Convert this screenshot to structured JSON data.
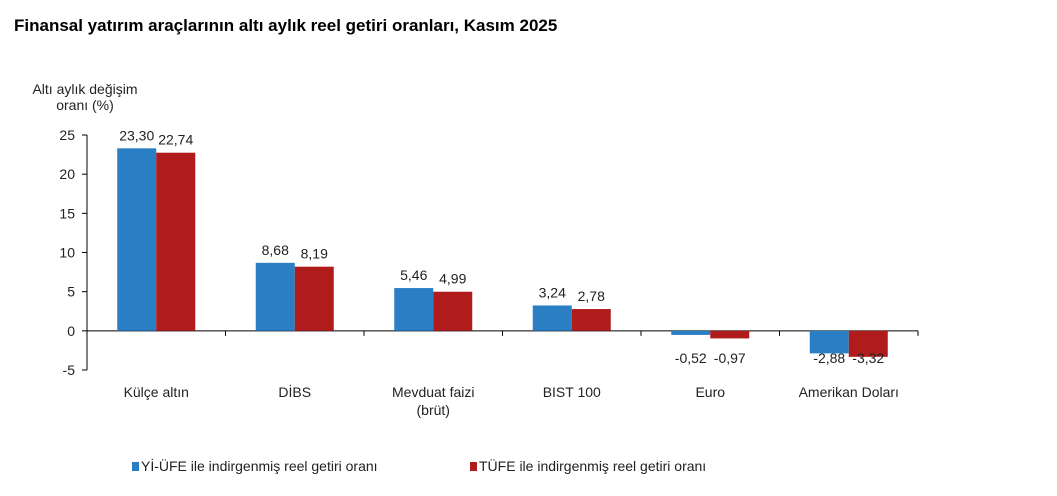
{
  "chart_data": {
    "type": "bar",
    "title": "Finansal yatırım araçlarının altı aylık reel getiri oranları, Kasım 2025",
    "ylabel": [
      "Altı aylık değişim",
      "oranı (%)"
    ],
    "xlabel": "",
    "ylim": [
      -5,
      25
    ],
    "yticks": [
      -5,
      0,
      5,
      10,
      15,
      20,
      25
    ],
    "categories": [
      [
        "Külçe altın"
      ],
      [
        "DİBS"
      ],
      [
        "Mevduat faizi",
        "(brüt)"
      ],
      [
        "BIST 100"
      ],
      [
        "Euro"
      ],
      [
        "Amerikan Doları"
      ]
    ],
    "series": [
      {
        "name": "Yİ-ÜFE ile indirgenmiş reel getiri oranı",
        "color": "#2a7fc4",
        "values": [
          23.3,
          8.68,
          5.46,
          3.24,
          -0.52,
          -2.88
        ],
        "labels": [
          "23,30",
          "8,68",
          "5,46",
          "3,24",
          "-0,52",
          "-2,88"
        ]
      },
      {
        "name": "TÜFE ile indirgenmiş reel getiri oranı",
        "color": "#b01c1c",
        "values": [
          22.74,
          8.19,
          4.99,
          2.78,
          -0.97,
          -3.32
        ],
        "labels": [
          "22,74",
          "8,19",
          "4,99",
          "2,78",
          "-0,97",
          "-3,32"
        ]
      }
    ],
    "grid": false,
    "legend_position": "bottom"
  }
}
